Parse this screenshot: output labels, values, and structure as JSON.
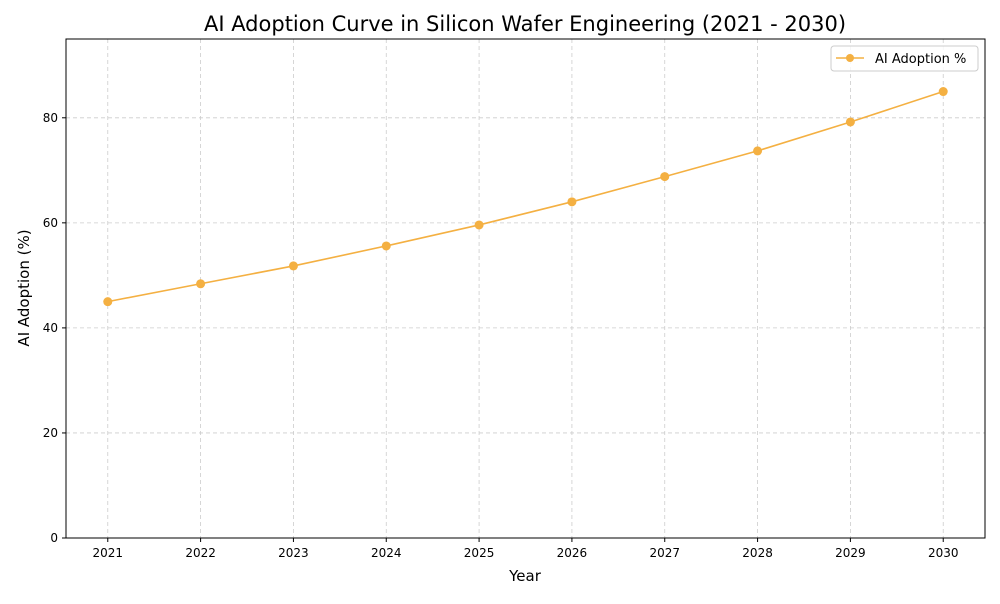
{
  "chart_data": {
    "type": "line",
    "title": "AI Adoption Curve in Silicon Wafer Engineering (2021 - 2030)",
    "xlabel": "Year",
    "ylabel": "AI Adoption (%)",
    "x": [
      2021,
      2022,
      2023,
      2024,
      2025,
      2026,
      2027,
      2028,
      2029,
      2030
    ],
    "x_tick_labels": [
      "2021",
      "2022",
      "2023",
      "2024",
      "2025",
      "2026",
      "2027",
      "2028",
      "2029",
      "2030"
    ],
    "series": [
      {
        "name": "AI Adoption %",
        "values": [
          45.0,
          48.4,
          51.8,
          55.6,
          59.6,
          64.0,
          68.8,
          73.7,
          79.2,
          85.0
        ],
        "color": "#f4b042",
        "marker": "circle"
      }
    ],
    "ylim": [
      0,
      95
    ],
    "xlim": [
      2020.55,
      2030.45
    ],
    "y_ticks": [
      0,
      20,
      40,
      60,
      80
    ],
    "y_tick_labels": [
      "0",
      "20",
      "40",
      "60",
      "80"
    ],
    "grid": true,
    "legend_position": "top-right"
  }
}
